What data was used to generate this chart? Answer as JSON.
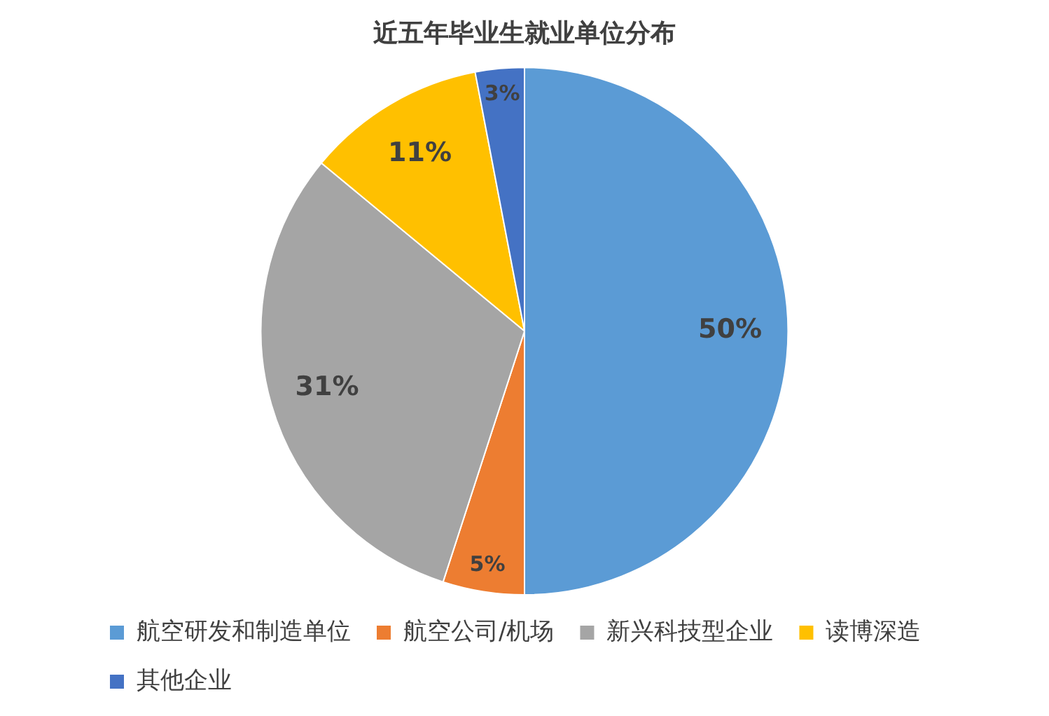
{
  "chart_data": {
    "type": "pie",
    "title": "近五年毕业生就业单位分布",
    "categories": [
      "航空研发和制造单位",
      "航空公司/机场",
      "新兴科技型企业",
      "读博深造",
      "其他企业"
    ],
    "values": [
      50,
      5,
      31,
      11,
      3
    ],
    "colors": [
      "#5b9bd5",
      "#ed7d31",
      "#a5a5a5",
      "#ffc000",
      "#4472c4"
    ],
    "value_labels": [
      "50%",
      "5%",
      "31%",
      "11%",
      "3%"
    ],
    "legend": "bottom"
  }
}
